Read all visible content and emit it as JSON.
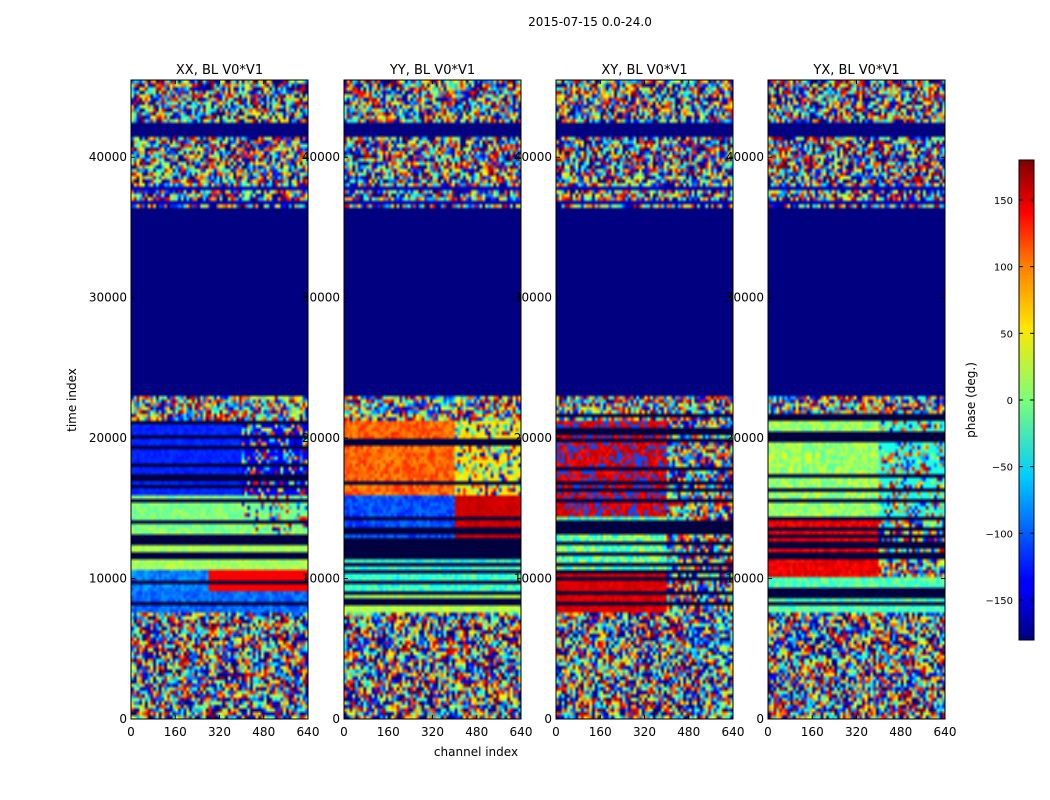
{
  "suptitle": "2015-07-15 0.0-24.0",
  "chart_data": {
    "type": "heatmap",
    "xlabel": "channel index",
    "ylabel": "time index",
    "xlim": [
      0,
      640
    ],
    "ylim": [
      0,
      45500
    ],
    "xticks": [
      "0",
      "160",
      "320",
      "480",
      "640"
    ],
    "yticks": [
      "0",
      "10000",
      "20000",
      "30000",
      "40000"
    ],
    "panels": [
      {
        "title": "XX, BL V0*V1"
      },
      {
        "title": "YY, BL V0*V1"
      },
      {
        "title": "XY, BL V0*V1"
      },
      {
        "title": "YX, BL V0*V1"
      }
    ],
    "colorbar": {
      "label": "phase (deg.)",
      "range": [
        -180,
        180
      ],
      "ticks": [
        "150",
        "100",
        "50",
        "0",
        "−50",
        "−100",
        "−150"
      ],
      "colormap": "jet"
    },
    "flagged_block": {
      "time_range": [
        23000,
        36500
      ],
      "color": "#000080"
    }
  }
}
